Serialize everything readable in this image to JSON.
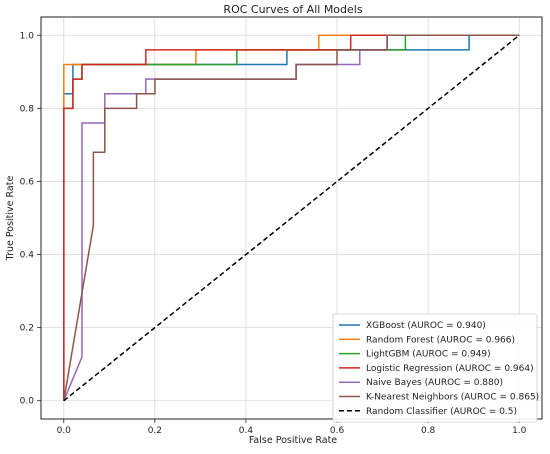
{
  "chart_data": {
    "type": "line",
    "title": "ROC Curves of All Models",
    "xlabel": "False Positive Rate",
    "ylabel": "True Positive Rate",
    "xlim": [
      -0.05,
      1.05
    ],
    "ylim": [
      -0.05,
      1.05
    ],
    "grid": true,
    "legend_position": "lower-right",
    "x_ticks": [
      0.0,
      0.2,
      0.4,
      0.6,
      0.8,
      1.0
    ],
    "y_ticks": [
      0.0,
      0.2,
      0.4,
      0.6,
      0.8,
      1.0
    ],
    "x_tick_labels": [
      "0.0",
      "0.2",
      "0.4",
      "0.6",
      "0.8",
      "1.0"
    ],
    "y_tick_labels": [
      "0.0",
      "0.2",
      "0.4",
      "0.6",
      "0.8",
      "1.0"
    ],
    "series": [
      {
        "name": "XGBoost (AUROC = 0.940)",
        "color": "#1f77b4",
        "dash": "solid",
        "points": [
          [
            0,
            0
          ],
          [
            0,
            0.84
          ],
          [
            0.02,
            0.84
          ],
          [
            0.02,
            0.92
          ],
          [
            0.49,
            0.92
          ],
          [
            0.49,
            0.96
          ],
          [
            0.89,
            0.96
          ],
          [
            0.89,
            1.0
          ],
          [
            1.0,
            1.0
          ]
        ]
      },
      {
        "name": "Random Forest (AUROC = 0.966)",
        "color": "#ff7f0e",
        "dash": "solid",
        "points": [
          [
            0,
            0
          ],
          [
            0,
            0.92
          ],
          [
            0.29,
            0.92
          ],
          [
            0.29,
            0.96
          ],
          [
            0.56,
            0.96
          ],
          [
            0.56,
            1.0
          ],
          [
            1.0,
            1.0
          ]
        ]
      },
      {
        "name": "LightGBM (AUROC = 0.949)",
        "color": "#2ca02c",
        "dash": "solid",
        "points": [
          [
            0,
            0
          ],
          [
            0,
            0.8
          ],
          [
            0.02,
            0.8
          ],
          [
            0.02,
            0.88
          ],
          [
            0.04,
            0.88
          ],
          [
            0.04,
            0.92
          ],
          [
            0.38,
            0.92
          ],
          [
            0.38,
            0.96
          ],
          [
            0.75,
            0.96
          ],
          [
            0.75,
            1.0
          ],
          [
            1.0,
            1.0
          ]
        ]
      },
      {
        "name": "Logistic Regression (AUROC = 0.964)",
        "color": "#d62728",
        "dash": "solid",
        "points": [
          [
            0,
            0
          ],
          [
            0,
            0.8
          ],
          [
            0.02,
            0.8
          ],
          [
            0.02,
            0.88
          ],
          [
            0.04,
            0.88
          ],
          [
            0.04,
            0.92
          ],
          [
            0.18,
            0.92
          ],
          [
            0.18,
            0.96
          ],
          [
            0.63,
            0.96
          ],
          [
            0.63,
            1.0
          ],
          [
            1.0,
            1.0
          ]
        ]
      },
      {
        "name": "Naive Bayes (AUROC = 0.880)",
        "color": "#9467bd",
        "dash": "solid",
        "points": [
          [
            0,
            0
          ],
          [
            0.04,
            0.12
          ],
          [
            0.04,
            0.76
          ],
          [
            0.09,
            0.76
          ],
          [
            0.09,
            0.84
          ],
          [
            0.18,
            0.84
          ],
          [
            0.18,
            0.88
          ],
          [
            0.51,
            0.88
          ],
          [
            0.51,
            0.92
          ],
          [
            0.65,
            0.92
          ],
          [
            0.65,
            0.96
          ],
          [
            0.71,
            0.96
          ],
          [
            0.71,
            1.0
          ],
          [
            1.0,
            1.0
          ]
        ]
      },
      {
        "name": "K-Nearest Neighbors (AUROC = 0.865)",
        "color": "#8c564b",
        "dash": "solid",
        "points": [
          [
            0,
            0
          ],
          [
            0.065,
            0.48
          ],
          [
            0.065,
            0.68
          ],
          [
            0.09,
            0.68
          ],
          [
            0.09,
            0.8
          ],
          [
            0.16,
            0.8
          ],
          [
            0.16,
            0.84
          ],
          [
            0.2,
            0.84
          ],
          [
            0.2,
            0.88
          ],
          [
            0.51,
            0.88
          ],
          [
            0.51,
            0.92
          ],
          [
            0.6,
            0.92
          ],
          [
            0.6,
            0.96
          ],
          [
            0.71,
            0.96
          ],
          [
            0.71,
            1.0
          ],
          [
            1.0,
            1.0
          ]
        ]
      },
      {
        "name": "Random Classifier (AUROC = 0.5)",
        "color": "#000000",
        "dash": "dashed",
        "points": [
          [
            0,
            0
          ],
          [
            1,
            1
          ]
        ]
      }
    ]
  }
}
